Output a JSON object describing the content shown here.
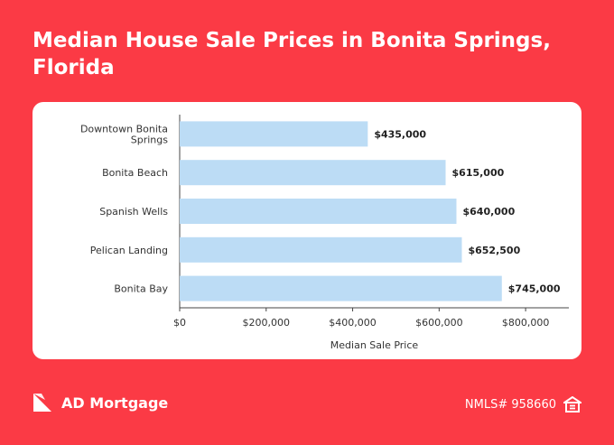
{
  "header": {
    "title": "Median House Sale Prices in Bonita Springs, Florida"
  },
  "chart_data": {
    "type": "bar",
    "orientation": "horizontal",
    "title": "Median House Sale Prices in Bonita Springs, Florida",
    "categories": [
      "Downtown Bonita Springs",
      "Bonita Beach",
      "Spanish Wells",
      "Pelican Landing",
      "Bonita Bay"
    ],
    "category_lines": [
      [
        "Downtown Bonita",
        "Springs"
      ],
      [
        "Bonita Beach"
      ],
      [
        "Spanish Wells"
      ],
      [
        "Pelican Landing"
      ],
      [
        "Bonita Bay"
      ]
    ],
    "values": [
      435000,
      615000,
      640000,
      652500,
      745000
    ],
    "value_labels": [
      "$435,000",
      "$615,000",
      "$640,000",
      "$652,500",
      "$745,000"
    ],
    "xlabel": "Median Sale Price",
    "ylabel": "",
    "xlim": [
      0,
      900000
    ],
    "xticks": [
      0,
      200000,
      400000,
      600000,
      800000
    ],
    "xtick_labels": [
      "$0",
      "$200,000",
      "$400,000",
      "$600,000",
      "$800,000"
    ],
    "grid": false,
    "bar_color": "#bcdcf5"
  },
  "footer": {
    "brand": "AD Mortgage",
    "nmls": "NMLS# 958660",
    "logo_icon": "ad-mortgage-logo-icon",
    "equal_housing_icon": "equal-housing-icon"
  },
  "colors": {
    "background": "#fb3a45",
    "card": "#ffffff",
    "text": "#333333"
  }
}
